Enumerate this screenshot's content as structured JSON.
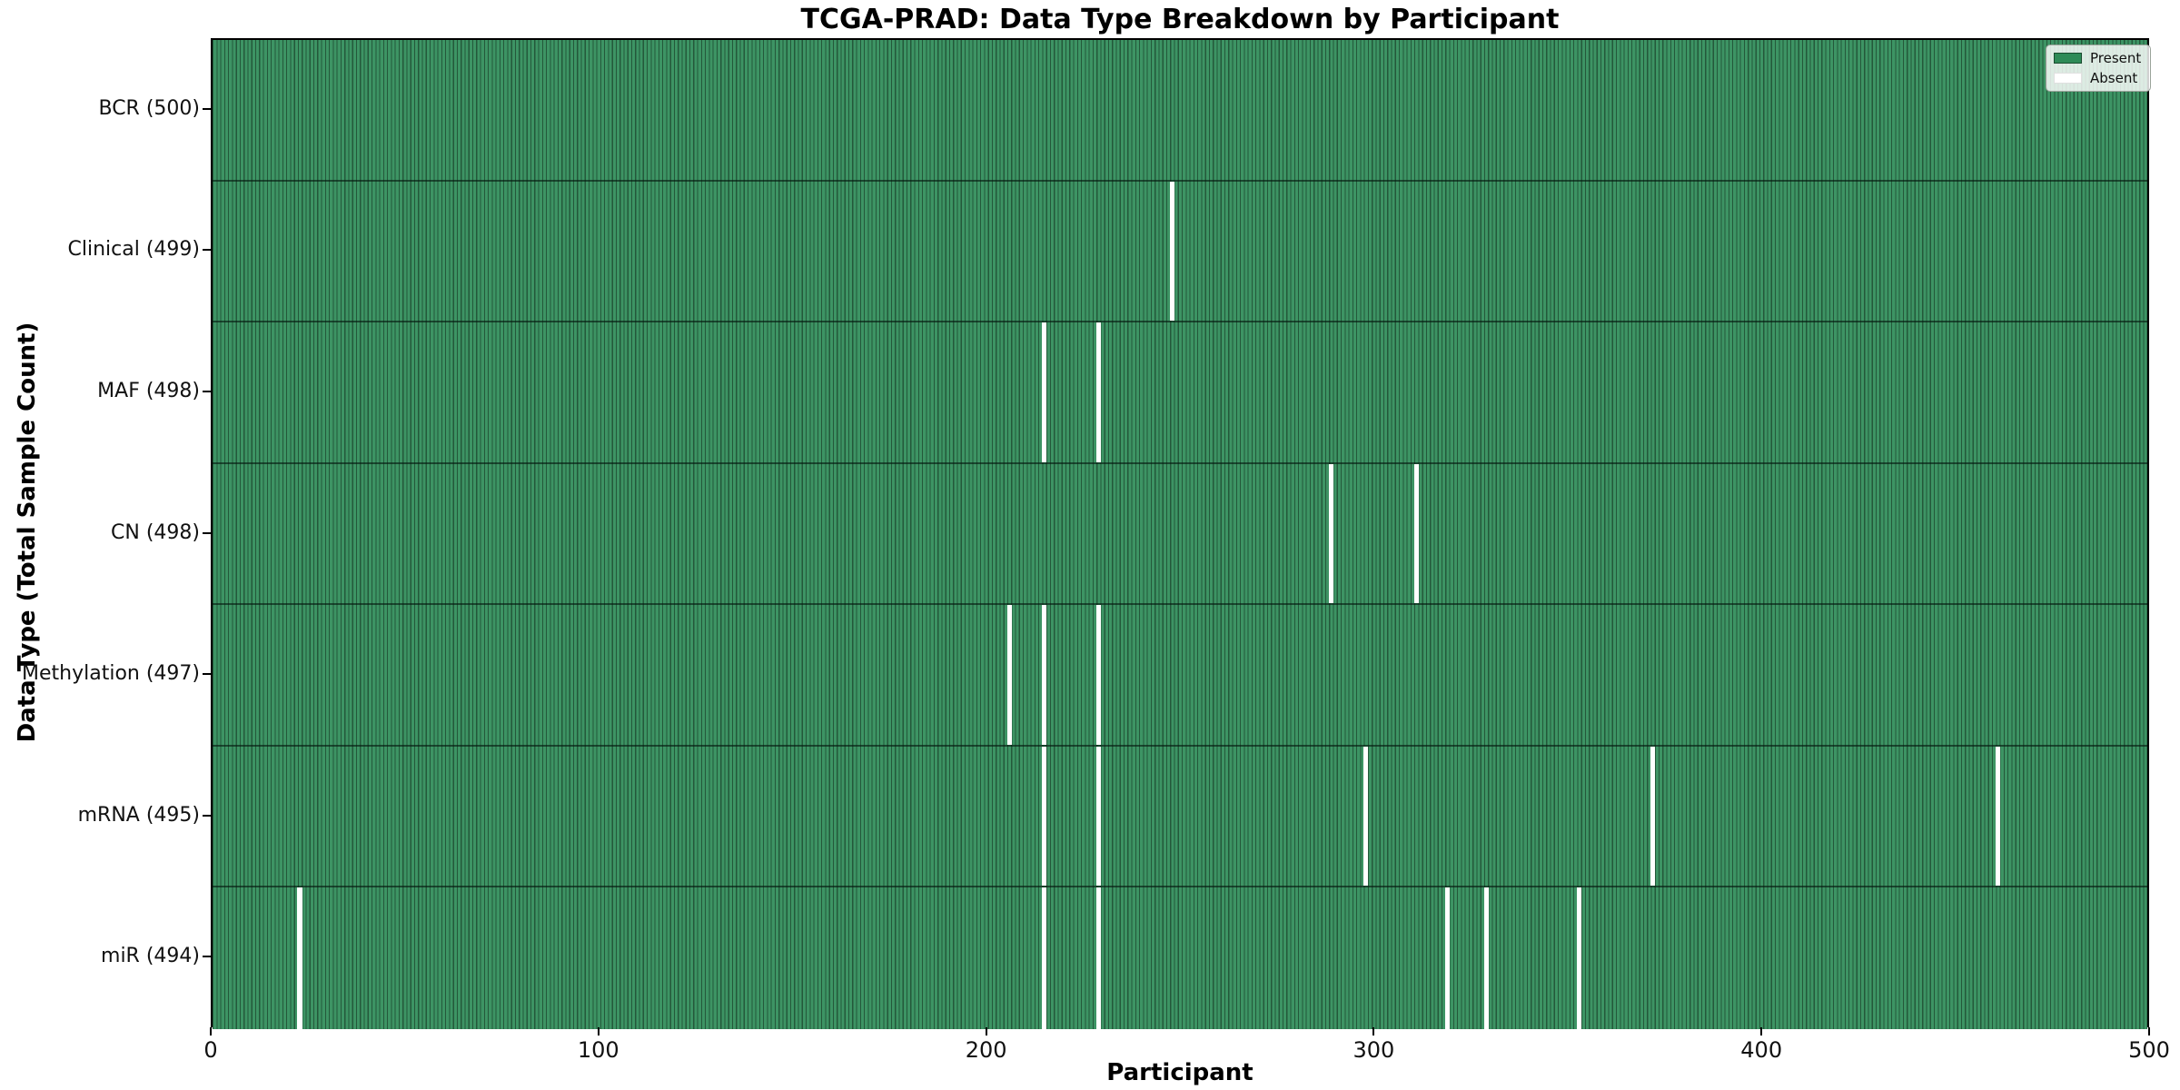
{
  "chart_data": {
    "type": "heatmap",
    "title": "TCGA-PRAD: Data Type Breakdown by Participant",
    "xlabel": "Participant",
    "ylabel": "Data Type (Total Sample Count)",
    "xlim": [
      0,
      500
    ],
    "n_participants": 500,
    "x_ticks": [
      0,
      100,
      200,
      300,
      400,
      500
    ],
    "grid": false,
    "legend_position": "upper right",
    "legend": [
      {
        "label": "Present",
        "color": "#2e8b57"
      },
      {
        "label": "Absent",
        "color": "#ffffff"
      }
    ],
    "colors": {
      "present_fill": "#2e8b57",
      "bar_edge": "#1b4d30",
      "absent_fill": "#ffffff",
      "spine": "#000000"
    },
    "rows": [
      {
        "label": "BCR (500)",
        "name": "BCR",
        "total": 500,
        "absent_participants": []
      },
      {
        "label": "Clinical (499)",
        "name": "Clinical",
        "total": 499,
        "absent_participants": [
          247
        ]
      },
      {
        "label": "MAF (498)",
        "name": "MAF",
        "total": 498,
        "absent_participants": [
          214,
          228
        ]
      },
      {
        "label": "CN (498)",
        "name": "CN",
        "total": 498,
        "absent_participants": [
          288,
          310
        ]
      },
      {
        "label": "Methylation (497)",
        "name": "Methylation",
        "total": 497,
        "absent_participants": [
          205,
          214,
          228
        ]
      },
      {
        "label": "mRNA (495)",
        "name": "mRNA",
        "total": 495,
        "absent_participants": [
          214,
          228,
          297,
          371,
          460
        ]
      },
      {
        "label": "miR (494)",
        "name": "miR",
        "total": 494,
        "absent_participants": [
          22,
          214,
          228,
          318,
          328,
          352
        ]
      }
    ]
  }
}
